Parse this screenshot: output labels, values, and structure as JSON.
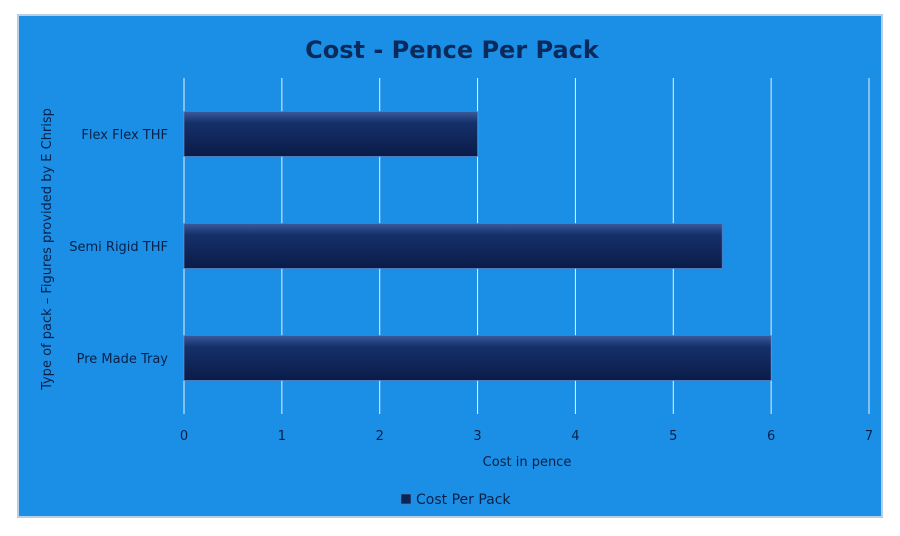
{
  "chart_data": {
    "type": "bar",
    "orientation": "horizontal",
    "title": "Cost - Pence Per Pack",
    "xlabel": "Cost in pence",
    "ylabel": "Type of pack – Figures provided by E Chrisp",
    "categories": [
      "Flex Flex THF",
      "Semi Rigid THF",
      "Pre Made Tray"
    ],
    "series": [
      {
        "name": "Cost Per Pack",
        "values": [
          3,
          5.5,
          6
        ]
      }
    ],
    "xlim": [
      0,
      7
    ],
    "xticks": [
      0,
      1,
      2,
      3,
      4,
      5,
      6,
      7
    ],
    "grid": "vertical",
    "legend_position": "bottom"
  },
  "colors": {
    "background": "#1b8fe6",
    "bar": "#0d2456",
    "bar_highlight": "#3a5a9a",
    "gridline": "#e8f2fb",
    "title": "#0b2a5c",
    "text": "#0b2048"
  }
}
